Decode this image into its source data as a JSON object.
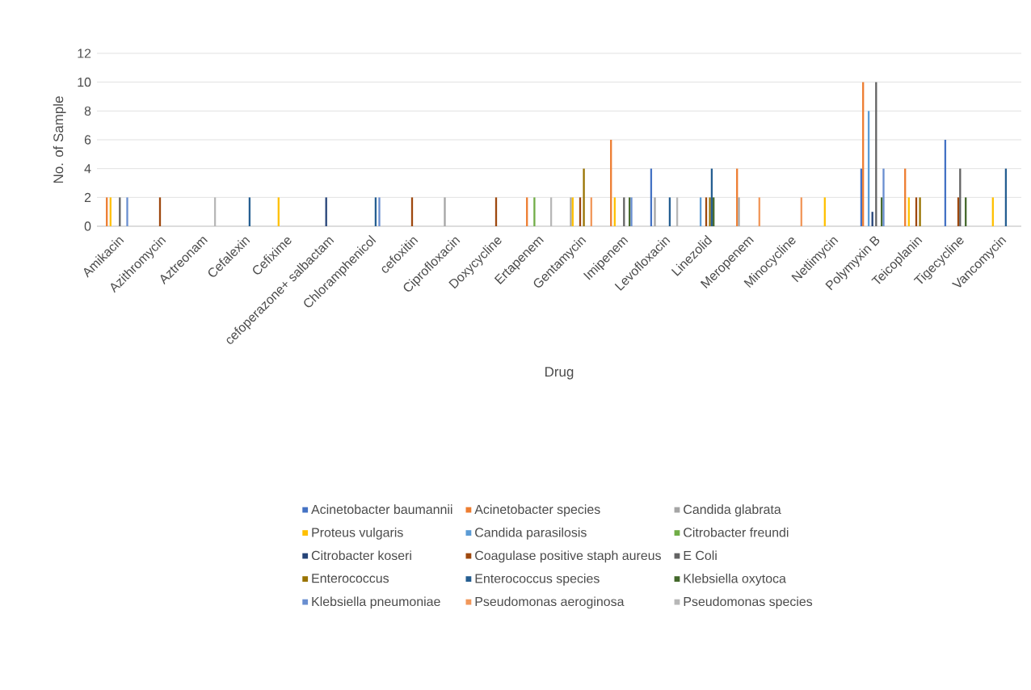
{
  "chart_data": {
    "type": "bar",
    "xlabel": "Drug",
    "ylabel": "No. of Sample",
    "categories": [
      "Amikacin",
      "Azithromycin",
      "Aztreonam",
      "Cefalexin",
      "Cefixime",
      "cefoperazone+ salbactam",
      "Chloramphenicol",
      "cefoxitin",
      "Ciprofloxacin",
      "Doxycycline",
      "Ertapenem",
      "Gentamycin",
      "Imipenem",
      "Levofloxacin",
      "Linezolid",
      "Meropenem",
      "Minocycline",
      "Netlimycin",
      "Polymyxin B",
      "Teicoplanin",
      "Tigecycline",
      "Vancomycin"
    ],
    "series": [
      {
        "name": "Acinetobacter baumannii",
        "color": "#4472c4",
        "values": [
          0,
          0,
          0,
          0,
          0,
          0,
          0,
          0,
          0,
          0,
          0,
          0,
          0,
          4,
          0,
          0,
          0,
          0,
          4,
          0,
          6,
          0
        ]
      },
      {
        "name": "Acinetobacter species",
        "color": "#ed7d31",
        "values": [
          2,
          0,
          0,
          0,
          0,
          0,
          0,
          0,
          0,
          0,
          2,
          0,
          6,
          0,
          0,
          4,
          0,
          0,
          10,
          4,
          0,
          0
        ]
      },
      {
        "name": "Candida glabrata",
        "color": "#a5a5a5",
        "values": [
          0,
          0,
          0,
          0,
          0,
          0,
          0,
          0,
          2,
          0,
          0,
          2,
          0,
          2,
          0,
          2,
          0,
          0,
          0,
          0,
          0,
          0
        ]
      },
      {
        "name": "Proteus vulgaris",
        "color": "#ffc000",
        "values": [
          2,
          0,
          0,
          0,
          2,
          0,
          0,
          0,
          0,
          0,
          0,
          2,
          2,
          0,
          0,
          0,
          0,
          2,
          0,
          2,
          0,
          2
        ]
      },
      {
        "name": "Candida parasilosis",
        "color": "#5b9bd5",
        "values": [
          0,
          0,
          0,
          0,
          0,
          0,
          0,
          0,
          0,
          0,
          0,
          0,
          0,
          0,
          2,
          0,
          0,
          0,
          8,
          0,
          0,
          0
        ]
      },
      {
        "name": "Citrobacter freundi",
        "color": "#70ad47",
        "values": [
          0,
          0,
          0,
          0,
          0,
          0,
          0,
          0,
          0,
          0,
          2,
          0,
          0,
          0,
          0,
          0,
          0,
          0,
          0,
          0,
          0,
          0
        ]
      },
      {
        "name": "Citrobacter koseri",
        "color": "#264478",
        "values": [
          0,
          0,
          0,
          0,
          0,
          2,
          0,
          0,
          0,
          0,
          0,
          0,
          0,
          0,
          0,
          0,
          0,
          0,
          1,
          0,
          0,
          0
        ]
      },
      {
        "name": "Coagulase positive staph aureus",
        "color": "#9e480e",
        "values": [
          0,
          2,
          0,
          0,
          0,
          0,
          0,
          2,
          0,
          2,
          0,
          2,
          0,
          0,
          2,
          0,
          0,
          0,
          0,
          2,
          2,
          0
        ]
      },
      {
        "name": "E Coli",
        "color": "#636363",
        "values": [
          2,
          0,
          0,
          0,
          0,
          0,
          0,
          0,
          0,
          0,
          0,
          0,
          2,
          0,
          0,
          0,
          0,
          0,
          10,
          0,
          4,
          0
        ]
      },
      {
        "name": "Enterococcus",
        "color": "#997300",
        "values": [
          0,
          0,
          0,
          0,
          0,
          0,
          0,
          0,
          0,
          0,
          0,
          4,
          0,
          0,
          2,
          0,
          0,
          0,
          0,
          2,
          0,
          0
        ]
      },
      {
        "name": "Enterococcus species",
        "color": "#255e91",
        "values": [
          0,
          0,
          0,
          2,
          0,
          0,
          2,
          0,
          0,
          0,
          0,
          0,
          0,
          2,
          4,
          0,
          0,
          0,
          0,
          0,
          0,
          4
        ]
      },
      {
        "name": "Klebsiella oxytoca",
        "color": "#43682b",
        "values": [
          0,
          0,
          0,
          0,
          0,
          0,
          0,
          0,
          0,
          0,
          0,
          0,
          2,
          0,
          2,
          0,
          0,
          0,
          2,
          0,
          2,
          0
        ]
      },
      {
        "name": "Klebsiella pneumoniae",
        "color": "#698ed0",
        "values": [
          2,
          0,
          0,
          0,
          0,
          0,
          2,
          0,
          0,
          0,
          0,
          0,
          2,
          0,
          0,
          0,
          0,
          0,
          4,
          0,
          0,
          0
        ]
      },
      {
        "name": "Pseudomonas aeroginosa",
        "color": "#f1975a",
        "values": [
          0,
          0,
          0,
          0,
          0,
          0,
          0,
          0,
          0,
          0,
          0,
          2,
          0,
          0,
          0,
          2,
          2,
          0,
          0,
          0,
          0,
          0
        ]
      },
      {
        "name": "Pseudomonas species",
        "color": "#b7b7b7",
        "values": [
          0,
          0,
          2,
          0,
          0,
          0,
          0,
          0,
          0,
          0,
          2,
          0,
          0,
          2,
          0,
          0,
          0,
          0,
          0,
          0,
          0,
          0
        ]
      }
    ],
    "ylim": [
      0,
      12
    ],
    "yticks": [
      0,
      2,
      4,
      6,
      8,
      10,
      12
    ],
    "grid": "y",
    "legend": "bottom"
  }
}
